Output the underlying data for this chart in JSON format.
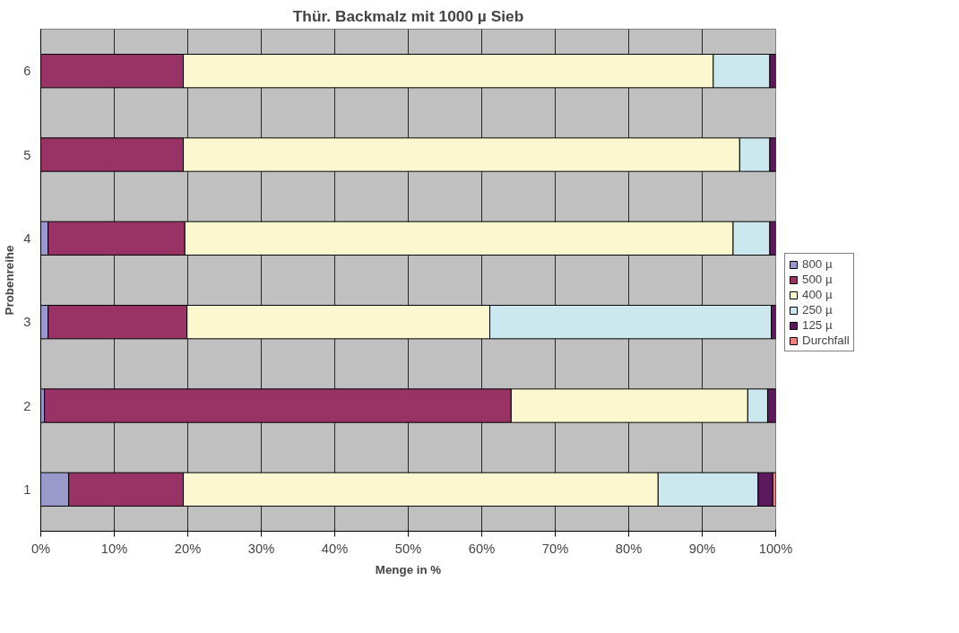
{
  "chart_data": {
    "type": "bar",
    "orientation": "horizontal",
    "stacked": true,
    "title": "Thür. Backmalz mit 1000 µ Sieb",
    "xlabel": "Menge in %",
    "ylabel": "Probenreihe",
    "categories": [
      "6",
      "5",
      "4",
      "3",
      "2",
      "1"
    ],
    "series": [
      {
        "name": "800 µ",
        "color": "#9999cc",
        "values": [
          null,
          null,
          1.0,
          1.0,
          0.5,
          3.8
        ]
      },
      {
        "name": "500 µ",
        "color": "#993366",
        "values": [
          19.4,
          19.4,
          18.6,
          18.9,
          63.5,
          15.6
        ]
      },
      {
        "name": "400 µ",
        "color": "#fbf8d0",
        "values": [
          72.1,
          75.7,
          74.6,
          41.2,
          32.2,
          64.6
        ]
      },
      {
        "name": "250 µ",
        "color": "#cce8ef",
        "values": [
          7.7,
          4.1,
          5.0,
          38.3,
          2.7,
          13.6
        ]
      },
      {
        "name": "125 µ",
        "color": "#5c1a5c",
        "values": [
          0.8,
          0.8,
          0.8,
          0.6,
          1.1,
          2.0
        ]
      },
      {
        "name": "Durchfall",
        "color": "#f08080",
        "values": [
          null,
          null,
          null,
          null,
          null,
          0.4
        ]
      }
    ],
    "xlim": [
      0,
      100
    ],
    "xticks": [
      {
        "value": 0,
        "label": "0%"
      },
      {
        "value": 10,
        "label": "10%"
      },
      {
        "value": 20,
        "label": "20%"
      },
      {
        "value": 30,
        "label": "30%"
      },
      {
        "value": 40,
        "label": "40%"
      },
      {
        "value": 50,
        "label": "50%"
      },
      {
        "value": 60,
        "label": "60%"
      },
      {
        "value": 70,
        "label": "70%"
      },
      {
        "value": 80,
        "label": "80%"
      },
      {
        "value": 90,
        "label": "90%"
      },
      {
        "value": 100,
        "label": "100%"
      }
    ],
    "grid": "x",
    "legend": "right"
  }
}
